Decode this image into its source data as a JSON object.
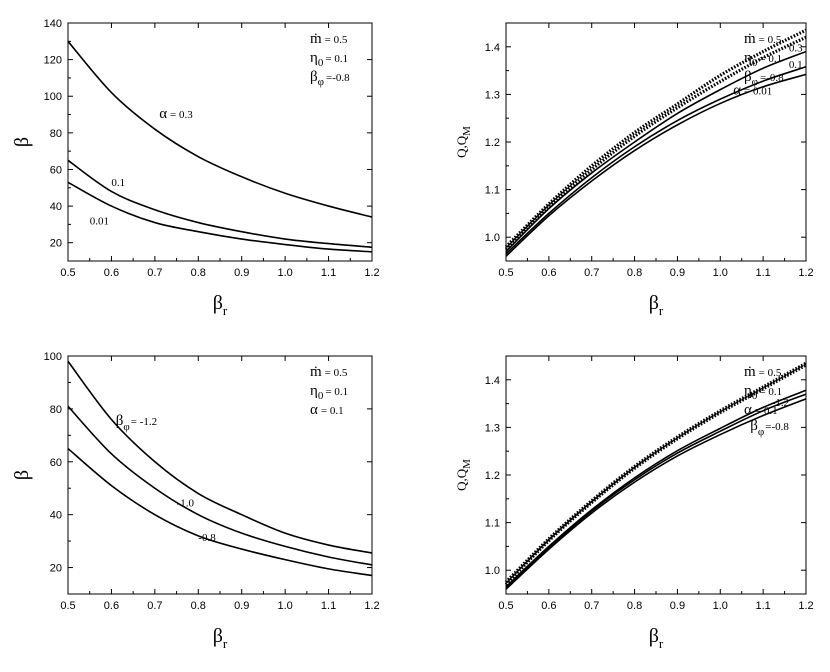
{
  "chart_data": [
    {
      "type": "line",
      "xlabel": "β",
      "xlabel_sub": "r",
      "ylabel": "β",
      "ylabel_sub": "",
      "xlim": [
        0.5,
        1.2
      ],
      "ylim": [
        10,
        140
      ],
      "xticks": [
        "0.5",
        "0.6",
        "0.7",
        "0.8",
        "0.9",
        "1.0",
        "1.1",
        "1.2"
      ],
      "yticks": [
        "20",
        "40",
        "60",
        "80",
        "100",
        "120",
        "140"
      ],
      "params": [
        {
          "sym": "ṁ",
          "sub": "",
          "val": "= 0.5"
        },
        {
          "sym": "η",
          "sub": "0",
          "val": "= 0.1"
        },
        {
          "sym": "β",
          "sub": "φ",
          "val": "=-0.8"
        }
      ],
      "series": [
        {
          "x": [
            0.5,
            0.6,
            0.7,
            0.8,
            0.9,
            1.0,
            1.1,
            1.2
          ],
          "y": [
            130,
            102,
            82,
            67,
            56,
            47,
            40,
            34
          ],
          "style": "solid"
        },
        {
          "x": [
            0.5,
            0.6,
            0.7,
            0.8,
            0.9,
            1.0,
            1.1,
            1.2
          ],
          "y": [
            65,
            48,
            38,
            31,
            26,
            22,
            19.5,
            17.5
          ],
          "style": "solid"
        },
        {
          "x": [
            0.5,
            0.6,
            0.7,
            0.8,
            0.9,
            1.0,
            1.1,
            1.2
          ],
          "y": [
            53,
            40,
            31,
            26,
            22,
            19,
            16.5,
            15
          ],
          "style": "solid"
        }
      ],
      "labels": [
        {
          "prefix": "α",
          "text": "= 0.3",
          "x": 0.71,
          "y": 88
        },
        {
          "prefix": "",
          "text": "0.1",
          "x": 0.6,
          "y": 51
        },
        {
          "prefix": "",
          "text": "0.01",
          "x": 0.55,
          "y": 30
        }
      ]
    },
    {
      "type": "line",
      "xlabel": "β",
      "xlabel_sub": "r",
      "ylabel": "Q,Q",
      "ylabel_sub": "M",
      "xlim": [
        0.5,
        1.2
      ],
      "ylim": [
        0.95,
        1.45
      ],
      "xticks": [
        "0.5",
        "0.6",
        "0.7",
        "0.8",
        "0.9",
        "1.0",
        "1.1",
        "1.2"
      ],
      "yticks": [
        "1.0",
        "1.1",
        "1.2",
        "1.3",
        "1.4"
      ],
      "params": [
        {
          "sym": "ṁ",
          "sub": "",
          "val": "= 0.5"
        },
        {
          "sym": "η",
          "sub": "0",
          "val": "= 0.1"
        },
        {
          "sym": "β",
          "sub": "φ",
          "val": "=-0.8"
        }
      ],
      "series": [
        {
          "x": [
            0.5,
            0.6,
            0.7,
            0.8,
            0.9,
            1.0,
            1.1,
            1.2
          ],
          "y": [
            0.98,
            1.07,
            1.15,
            1.22,
            1.28,
            1.34,
            1.39,
            1.435
          ],
          "style": "dotted"
        },
        {
          "x": [
            0.5,
            0.6,
            0.7,
            0.8,
            0.9,
            1.0,
            1.1,
            1.2
          ],
          "y": [
            0.975,
            1.065,
            1.142,
            1.212,
            1.272,
            1.327,
            1.377,
            1.42
          ],
          "style": "dotted"
        },
        {
          "x": [
            0.5,
            0.6,
            0.7,
            0.8,
            0.9,
            1.0,
            1.1,
            1.2
          ],
          "y": [
            0.97,
            1.06,
            1.135,
            1.2,
            1.26,
            1.31,
            1.355,
            1.39
          ],
          "style": "solid"
        },
        {
          "x": [
            0.5,
            0.6,
            0.7,
            0.8,
            0.9,
            1.0,
            1.1,
            1.2
          ],
          "y": [
            0.965,
            1.05,
            1.125,
            1.19,
            1.245,
            1.29,
            1.328,
            1.358
          ],
          "style": "solid"
        },
        {
          "x": [
            0.5,
            0.6,
            0.7,
            0.8,
            0.9,
            1.0,
            1.1,
            1.2
          ],
          "y": [
            0.96,
            1.045,
            1.118,
            1.182,
            1.236,
            1.281,
            1.316,
            1.342
          ],
          "style": "solid"
        }
      ],
      "labels": [
        {
          "prefix": "",
          "text": "0.3",
          "x": 1.16,
          "y": 1.39
        },
        {
          "prefix": "",
          "text": "0.1",
          "x": 1.16,
          "y": 1.355
        },
        {
          "prefix": "α",
          "text": "= 0.01",
          "x": 1.03,
          "y": 1.3
        }
      ]
    },
    {
      "type": "line",
      "xlabel": "β",
      "xlabel_sub": "r",
      "ylabel": "β",
      "ylabel_sub": "",
      "xlim": [
        0.5,
        1.2
      ],
      "ylim": [
        10,
        100
      ],
      "xticks": [
        "0.5",
        "0.6",
        "0.7",
        "0.8",
        "0.9",
        "1.0",
        "1.1",
        "1.2"
      ],
      "yticks": [
        "20",
        "40",
        "60",
        "80",
        "100"
      ],
      "params": [
        {
          "sym": "ṁ",
          "sub": "",
          "val": "= 0.5"
        },
        {
          "sym": "η",
          "sub": "0",
          "val": "= 0.1"
        },
        {
          "sym": "α",
          "sub": "",
          "val": "= 0.1"
        }
      ],
      "series": [
        {
          "x": [
            0.5,
            0.6,
            0.7,
            0.8,
            0.9,
            1.0,
            1.1,
            1.2
          ],
          "y": [
            98,
            76,
            60,
            48,
            40,
            33,
            28.5,
            25.5
          ],
          "style": "solid"
        },
        {
          "x": [
            0.5,
            0.6,
            0.7,
            0.8,
            0.9,
            1.0,
            1.1,
            1.2
          ],
          "y": [
            81,
            63,
            50,
            40,
            33,
            28,
            24,
            21
          ],
          "style": "solid"
        },
        {
          "x": [
            0.5,
            0.6,
            0.7,
            0.8,
            0.9,
            1.0,
            1.1,
            1.2
          ],
          "y": [
            65,
            51,
            40,
            32,
            27,
            23,
            19.5,
            17
          ],
          "style": "solid"
        }
      ],
      "labels": [
        {
          "prefix": "β",
          "sub": "φ",
          "text": "= -1.2",
          "x": 0.61,
          "y": 74
        },
        {
          "prefix": "",
          "sub": "",
          "text": "-1.0",
          "x": 0.75,
          "y": 43
        },
        {
          "prefix": "",
          "sub": "",
          "text": "-0.8",
          "x": 0.8,
          "y": 30
        }
      ]
    },
    {
      "type": "line",
      "xlabel": "β",
      "xlabel_sub": "r",
      "ylabel": "Q,Q",
      "ylabel_sub": "M",
      "xlim": [
        0.5,
        1.2
      ],
      "ylim": [
        0.95,
        1.45
      ],
      "xticks": [
        "0.5",
        "0.6",
        "0.7",
        "0.8",
        "0.9",
        "1.0",
        "1.1",
        "1.2"
      ],
      "yticks": [
        "1.0",
        "1.1",
        "1.2",
        "1.3",
        "1.4"
      ],
      "params": [
        {
          "sym": "ṁ",
          "sub": "",
          "val": "= 0.5"
        },
        {
          "sym": "η",
          "sub": "0",
          "val": "= 0.1"
        },
        {
          "sym": "α",
          "sub": "",
          "val": "= 0.1"
        }
      ],
      "series": [
        {
          "x": [
            0.5,
            0.6,
            0.7,
            0.8,
            0.9,
            1.0,
            1.1,
            1.2
          ],
          "y": [
            0.975,
            1.066,
            1.146,
            1.218,
            1.28,
            1.335,
            1.385,
            1.435
          ],
          "style": "dotted"
        },
        {
          "x": [
            0.5,
            0.6,
            0.7,
            0.8,
            0.9,
            1.0,
            1.1,
            1.2
          ],
          "y": [
            0.97,
            1.062,
            1.142,
            1.214,
            1.276,
            1.331,
            1.381,
            1.431
          ],
          "style": "dotted"
        },
        {
          "x": [
            0.5,
            0.6,
            0.7,
            0.8,
            0.9,
            1.0,
            1.1,
            1.2
          ],
          "y": [
            0.965,
            1.05,
            1.127,
            1.194,
            1.251,
            1.298,
            1.342,
            1.378
          ],
          "style": "solid"
        },
        {
          "x": [
            0.5,
            0.6,
            0.7,
            0.8,
            0.9,
            1.0,
            1.1,
            1.2
          ],
          "y": [
            0.962,
            1.047,
            1.124,
            1.19,
            1.246,
            1.292,
            1.335,
            1.37
          ],
          "style": "solid"
        },
        {
          "x": [
            0.5,
            0.6,
            0.7,
            0.8,
            0.9,
            1.0,
            1.1,
            1.2
          ],
          "y": [
            0.96,
            1.044,
            1.12,
            1.185,
            1.24,
            1.285,
            1.325,
            1.36
          ],
          "style": "solid"
        }
      ],
      "labels": [
        {
          "prefix": "",
          "sub": "",
          "text": "-1.2",
          "x": 1.12,
          "y": 1.345
        },
        {
          "prefix": "β",
          "sub": "φ",
          "text": "=-0.8",
          "x": 1.07,
          "y": 1.295
        }
      ]
    }
  ]
}
